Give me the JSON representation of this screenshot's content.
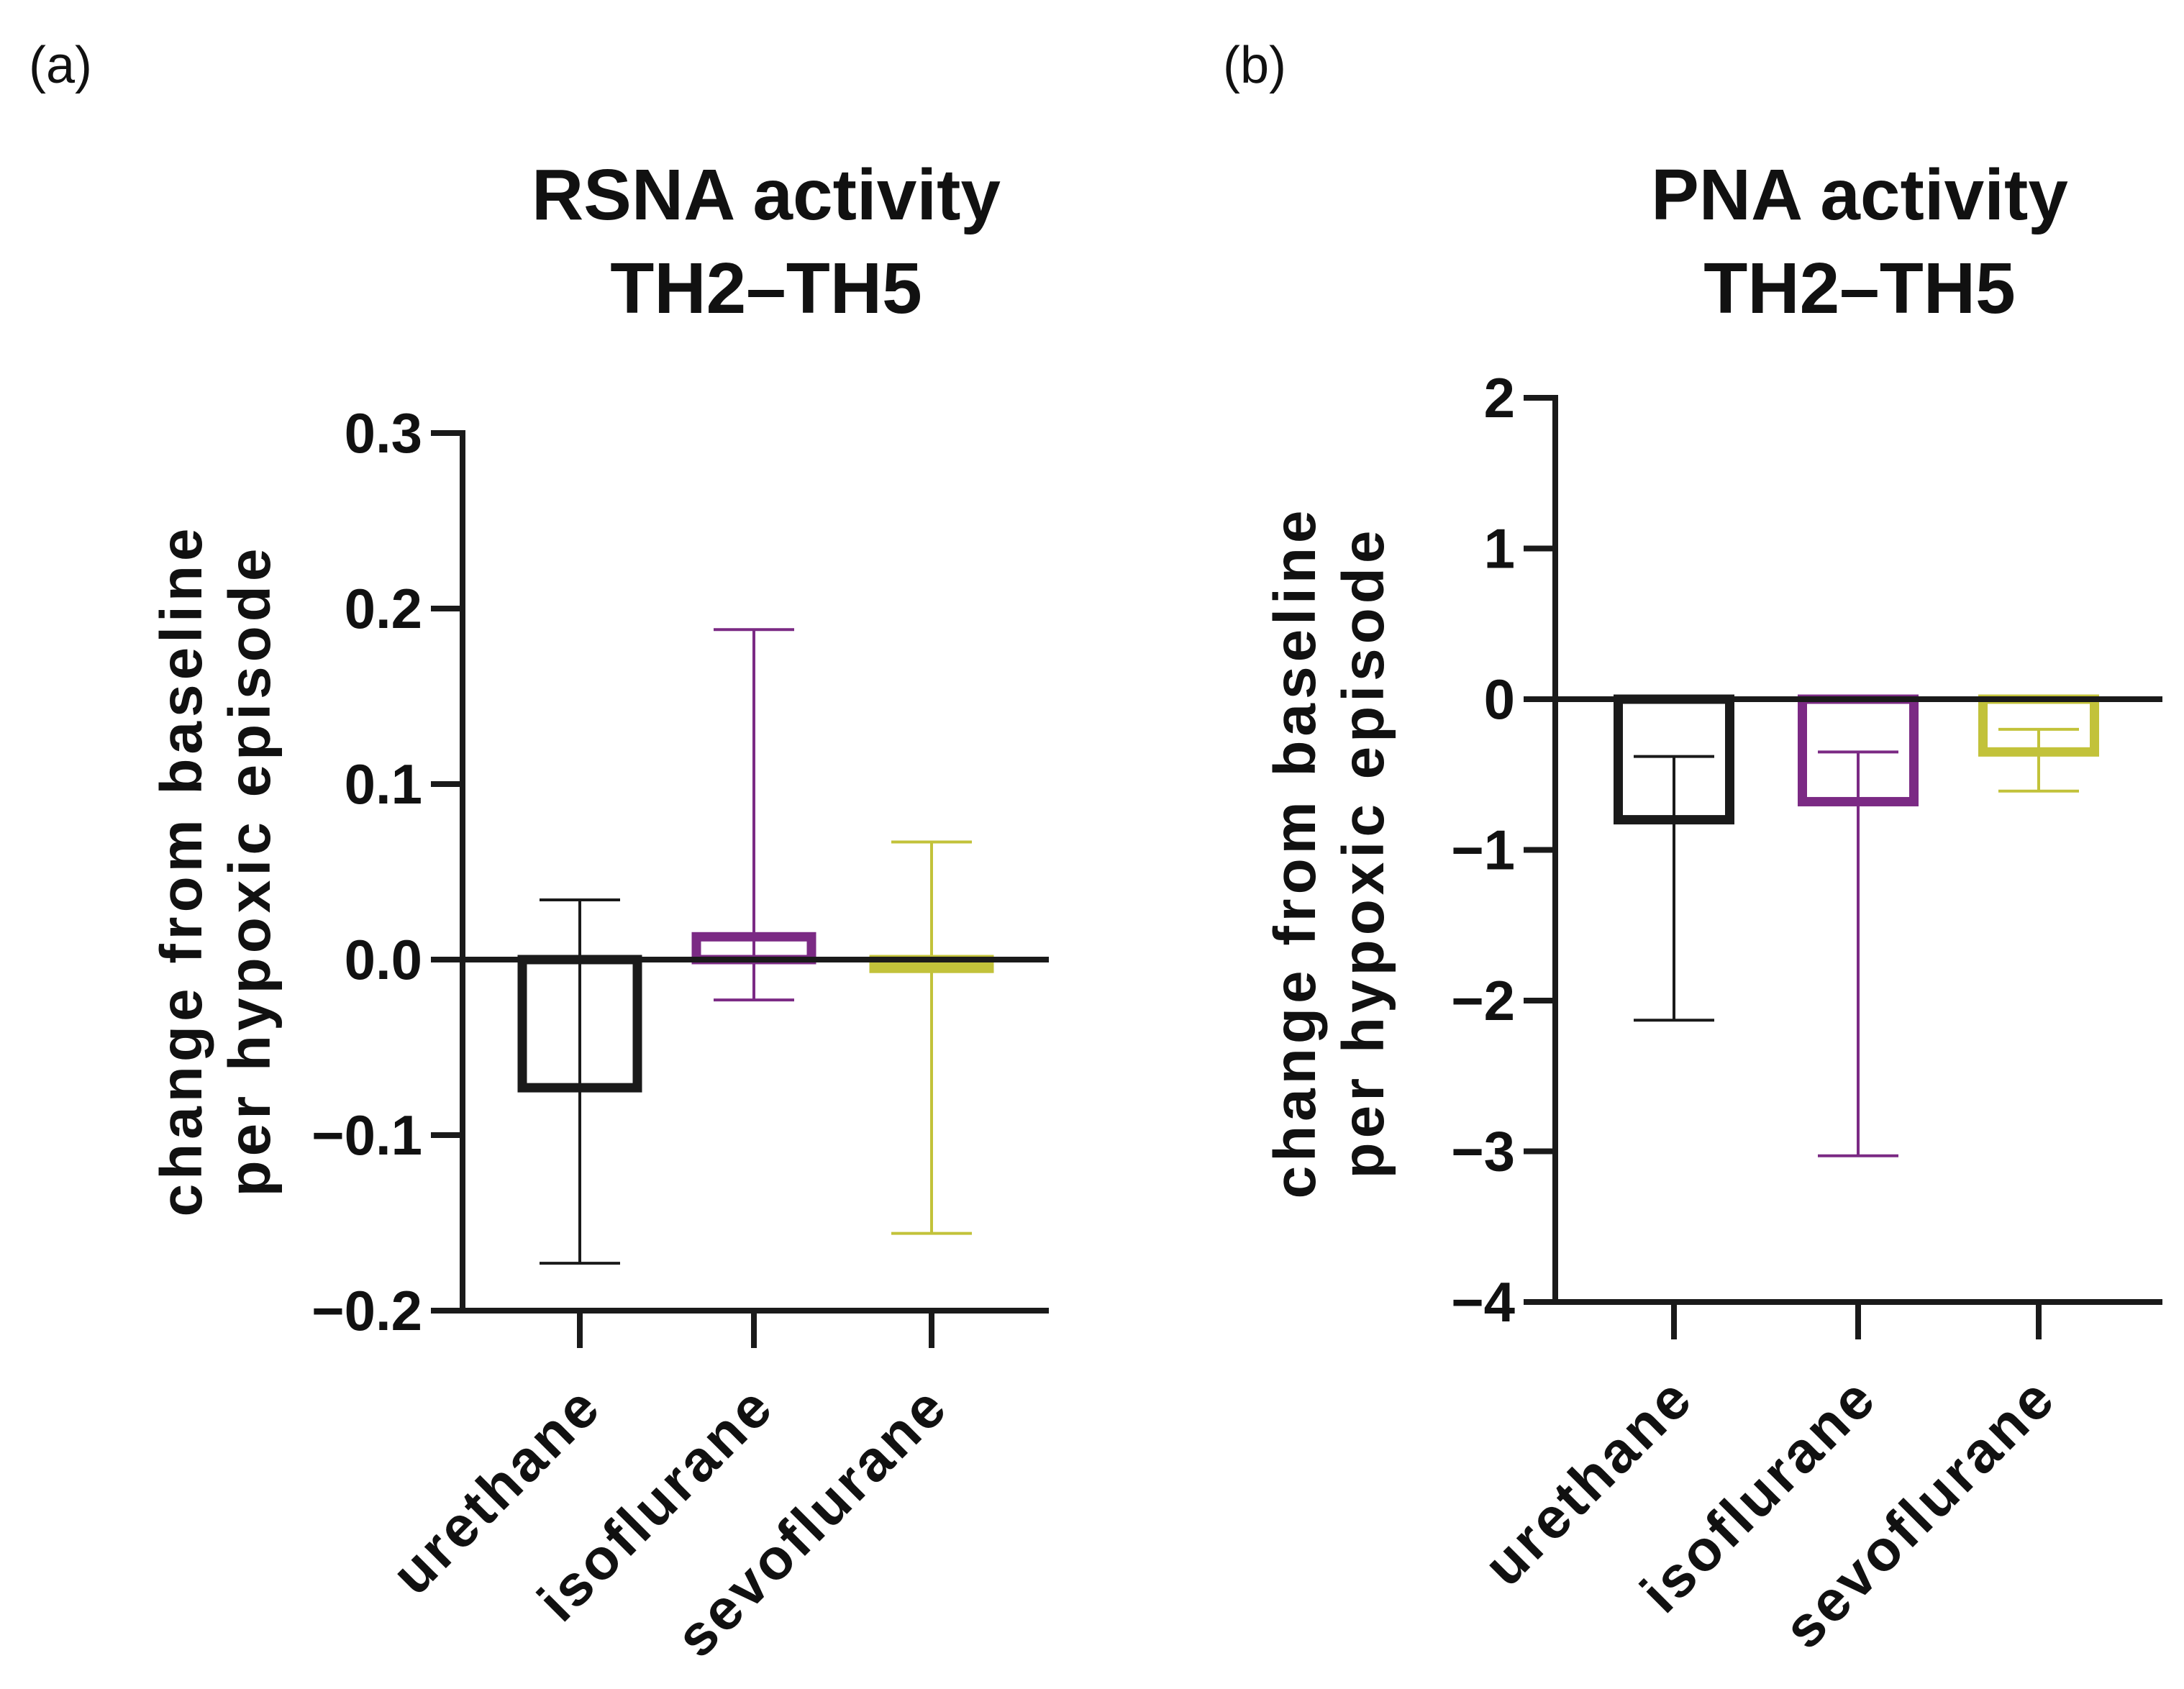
{
  "panels": [
    {
      "label": "(a)",
      "title_line1": "RSNA activity",
      "title_line2": "TH2–TH5",
      "ylabel_line1": "change from baseline",
      "ylabel_line2": "per hypoxic episode",
      "yticks": [
        "0.3",
        "0.2",
        "0.1",
        "0.0",
        "−0.1",
        "−0.2"
      ]
    },
    {
      "label": "(b)",
      "title_line1": "PNA activity",
      "title_line2": "TH2–TH5",
      "ylabel_line1": "change from baseline",
      "ylabel_line2": "per hypoxic episode",
      "yticks": [
        "2",
        "1",
        "0",
        "−1",
        "−2",
        "−3",
        "−4"
      ]
    }
  ],
  "chart_data": [
    {
      "type": "bar",
      "title": "RSNA activity TH2–TH5",
      "ylabel": "change from baseline per hypoxic episode",
      "xlabel": "",
      "categories": [
        "urethane",
        "isoflurane",
        "sevoflurane"
      ],
      "values": [
        -0.073,
        0.013,
        -0.005
      ],
      "error_low": [
        -0.173,
        -0.023,
        -0.156
      ],
      "error_high": [
        0.034,
        0.188,
        0.067
      ],
      "colors": [
        "#1a1a1a",
        "#7b2a84",
        "#c2c23a"
      ],
      "ylim": [
        -0.2,
        0.3
      ],
      "ytick_values": [
        0.3,
        0.2,
        0.1,
        0.0,
        -0.1,
        -0.2
      ]
    },
    {
      "type": "bar",
      "title": "PNA activity TH2–TH5",
      "ylabel": "change from baseline per hypoxic episode",
      "xlabel": "",
      "categories": [
        "urethane",
        "isoflurane",
        "sevoflurane"
      ],
      "values": [
        -0.8,
        -0.68,
        -0.35
      ],
      "error_low": [
        -2.13,
        -3.03,
        -0.61
      ],
      "error_high": [
        -0.38,
        -0.35,
        -0.2
      ],
      "colors": [
        "#1a1a1a",
        "#7b2a84",
        "#c2c23a"
      ],
      "ylim": [
        -4,
        2
      ],
      "ytick_values": [
        2,
        1,
        0,
        -1,
        -2,
        -3,
        -4
      ]
    }
  ]
}
